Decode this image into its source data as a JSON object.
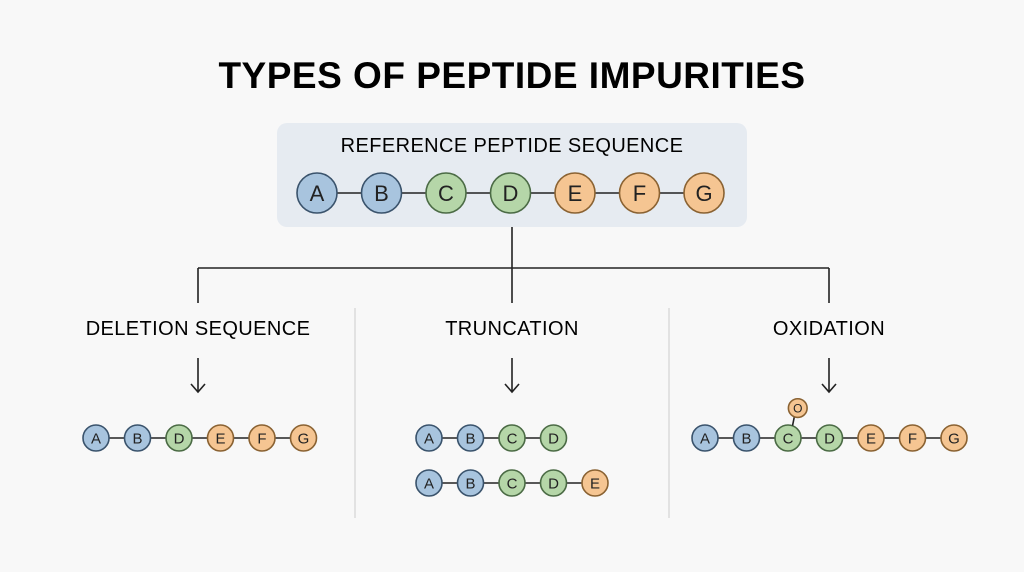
{
  "title": "TYPES OF PEPTIDE IMPURITIES",
  "reference": {
    "label": "REFERENCE PEPTIDE SEQUENCE",
    "residues": [
      "A",
      "B",
      "C",
      "D",
      "E",
      "F",
      "G"
    ]
  },
  "branches": [
    {
      "label": "DELETION SEQUENCE",
      "chains": [
        [
          "A",
          "B",
          "D",
          "E",
          "F",
          "G"
        ]
      ]
    },
    {
      "label": "TRUNCATION",
      "chains": [
        [
          "A",
          "B",
          "C",
          "D"
        ],
        [
          "A",
          "B",
          "C",
          "D",
          "E"
        ]
      ]
    },
    {
      "label": "OXIDATION",
      "chains": [
        [
          "A",
          "B",
          "C",
          "D",
          "E",
          "F",
          "G"
        ]
      ],
      "modification": {
        "label": "O",
        "on_residue": "C"
      }
    }
  ],
  "colors": {
    "A": {
      "fill": "#a8c4de",
      "stroke": "#3a536c"
    },
    "B": {
      "fill": "#a8c4de",
      "stroke": "#3a536c"
    },
    "C": {
      "fill": "#b5d6a8",
      "stroke": "#4b6b45"
    },
    "D": {
      "fill": "#b5d6a8",
      "stroke": "#4b6b45"
    },
    "E": {
      "fill": "#f5c592",
      "stroke": "#8a6232"
    },
    "F": {
      "fill": "#f5c592",
      "stroke": "#8a6232"
    },
    "G": {
      "fill": "#f5c592",
      "stroke": "#8a6232"
    },
    "O": {
      "fill": "#f5c592",
      "stroke": "#8a6232"
    },
    "reference_box": "#e6ebf1",
    "line": "#222222",
    "divider": "#d4d4d4"
  }
}
